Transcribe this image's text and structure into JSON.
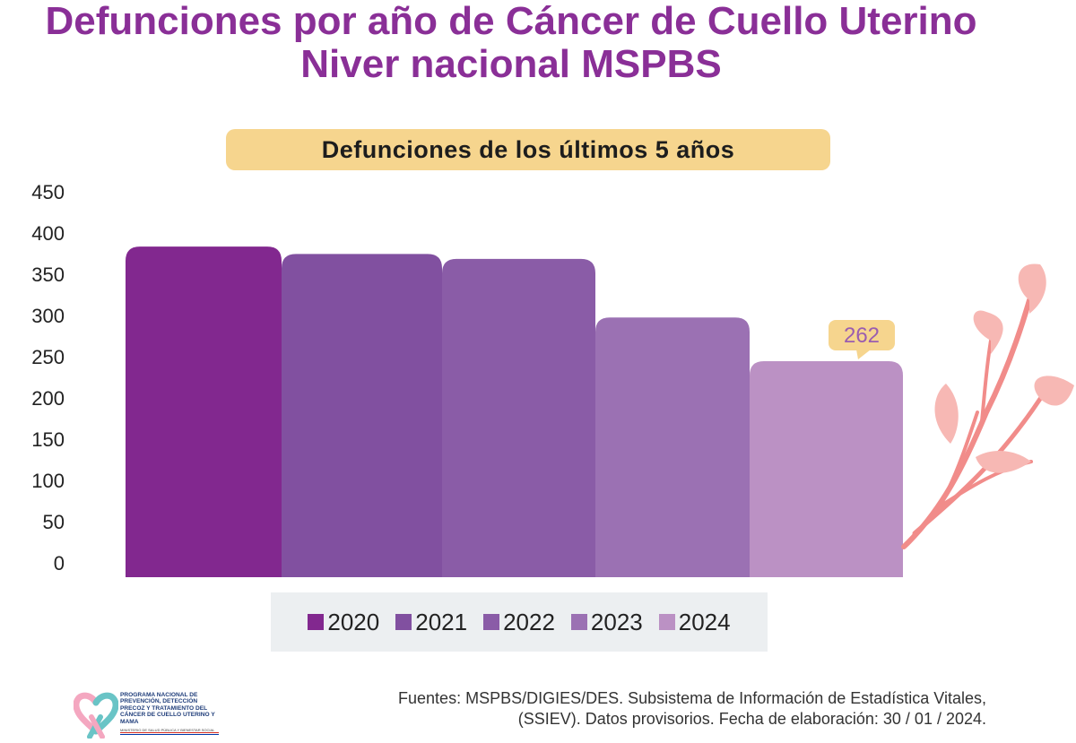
{
  "header": {
    "title_line1": "Defunciones por año de Cáncer de Cuello Uterino",
    "title_line2": "Niver nacional MSPBS",
    "subtitle": "Defunciones de los últimos 5 años"
  },
  "chart_data": {
    "type": "bar",
    "title": "Defunciones de los últimos 5 años",
    "categories": [
      "2020",
      "2021",
      "2022",
      "2023",
      "2024"
    ],
    "values": [
      401,
      392,
      386,
      315,
      262
    ],
    "colors": [
      "#82288f",
      "#8150a0",
      "#8a5ca7",
      "#9b71b3",
      "#bb91c4"
    ],
    "ylim": [
      0,
      450
    ],
    "yticks": [
      0,
      50,
      100,
      150,
      200,
      250,
      300,
      350,
      400,
      450
    ],
    "ytick_labels": [
      "0",
      "50",
      "100",
      "150",
      "200",
      "250",
      "300",
      "350",
      "400",
      "450"
    ],
    "data_labels": [
      {
        "category": "2024",
        "text": "262"
      }
    ],
    "xlabel": "",
    "ylabel": "",
    "grid": false,
    "legend": {
      "position": "bottom",
      "entries": [
        "2020",
        "2021",
        "2022",
        "2023",
        "2024"
      ]
    }
  },
  "colors": {
    "title": "#8a2f97",
    "pill": "#f6d58e",
    "callout": "#f6d58e",
    "callout_text": "#9a5db0",
    "legend_bg": "#eceff1",
    "branch": "#f18c8a",
    "leaf": "#f7b8b4"
  },
  "footer": {
    "source_line1": "Fuentes: MSPBS/DIGIES/DES. Subsistema de Información de Estadística Vitales,",
    "source_line2": "(SSIEV). Datos provisorios. Fecha de elaboración: 30 / 01 / 2024."
  },
  "logo": {
    "name": "PROGRAMA NACIONAL DE PREVENCIÓN, DETECCIÓN PRECOZ Y TRATAMIENTO DEL CÁNCER DE CUELLO UTERINO Y MAMA",
    "ministry": "MINISTERIO DE SALUD PÚBLICA Y BIENESTAR SOCIAL",
    "icon": "ribbon-heart-icon"
  }
}
